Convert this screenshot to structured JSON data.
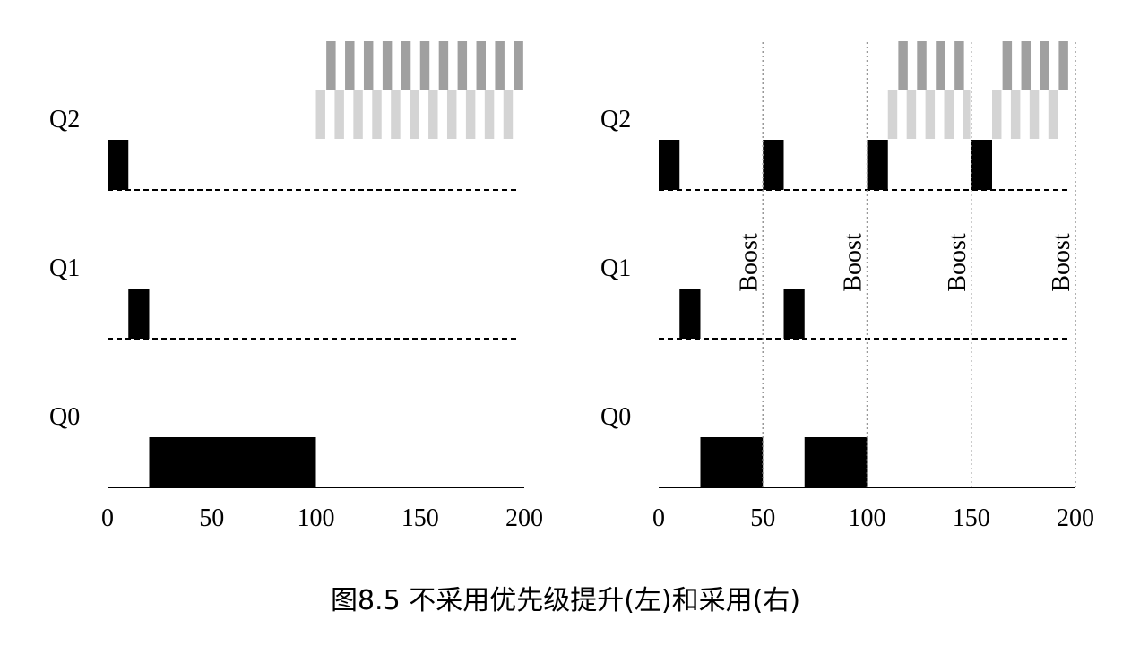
{
  "caption": "图8.5 不采用优先级提升(左)和采用(右)",
  "chart_data": [
    {
      "type": "timeline",
      "xlim": [
        0,
        200
      ],
      "xticks": [
        0,
        50,
        100,
        150,
        200
      ],
      "job_color": "#000000",
      "queues": [
        {
          "name": "Q2",
          "line": "dashed",
          "segments": [
            [
              0,
              10
            ]
          ],
          "stripes": [
            {
              "color": "#a0a0a0",
              "intervals": [
                [
                  105,
                  109.5
                ],
                [
                  114,
                  118.5
                ],
                [
                  123,
                  127.5
                ],
                [
                  132,
                  136.5
                ],
                [
                  141,
                  145.5
                ],
                [
                  150,
                  154.5
                ],
                [
                  159,
                  163.5
                ],
                [
                  168,
                  172.5
                ],
                [
                  177,
                  181.5
                ],
                [
                  186,
                  190.5
                ],
                [
                  195,
                  199.5
                ]
              ]
            },
            {
              "color": "#d4d4d4",
              "intervals": [
                [
                  100,
                  104.5
                ],
                [
                  109,
                  113.5
                ],
                [
                  118,
                  122.5
                ],
                [
                  127,
                  131.5
                ],
                [
                  136,
                  140.5
                ],
                [
                  145,
                  149.5
                ],
                [
                  154,
                  158.5
                ],
                [
                  163,
                  167.5
                ],
                [
                  172,
                  176.5
                ],
                [
                  181,
                  185.5
                ],
                [
                  190,
                  194.5
                ]
              ]
            }
          ]
        },
        {
          "name": "Q1",
          "line": "dashed",
          "segments": [
            [
              10,
              20
            ]
          ]
        },
        {
          "name": "Q0",
          "line": "solid",
          "segments": [
            [
              20,
              100
            ]
          ]
        }
      ]
    },
    {
      "type": "timeline",
      "xlim": [
        0,
        200
      ],
      "xticks": [
        0,
        50,
        100,
        150,
        200
      ],
      "job_color": "#000000",
      "boosts": [
        50,
        100,
        150,
        200
      ],
      "boost_label": "Boost",
      "queues": [
        {
          "name": "Q2",
          "line": "dashed",
          "segments": [
            [
              0,
              10
            ],
            [
              50,
              60
            ],
            [
              100,
              110
            ],
            [
              150,
              160
            ],
            [
              199.6,
              200
            ]
          ],
          "stripes": [
            {
              "color": "#a0a0a0",
              "intervals": [
                [
                  115,
                  119.5
                ],
                [
                  124,
                  128.5
                ],
                [
                  133,
                  137.5
                ],
                [
                  142,
                  146.5
                ],
                [
                  165,
                  169.5
                ],
                [
                  174,
                  178.5
                ],
                [
                  183,
                  187.5
                ],
                [
                  192,
                  196.5
                ]
              ]
            },
            {
              "color": "#d4d4d4",
              "intervals": [
                [
                  110,
                  114.5
                ],
                [
                  119,
                  123.5
                ],
                [
                  128,
                  132.5
                ],
                [
                  137,
                  141.5
                ],
                [
                  146,
                  149.5
                ],
                [
                  160,
                  164.5
                ],
                [
                  169,
                  173.5
                ],
                [
                  178,
                  182.5
                ],
                [
                  187,
                  191.5
                ]
              ]
            }
          ]
        },
        {
          "name": "Q1",
          "line": "dashed",
          "segments": [
            [
              10,
              20
            ],
            [
              60,
              70
            ]
          ]
        },
        {
          "name": "Q0",
          "line": "solid",
          "segments": [
            [
              20,
              50
            ],
            [
              70,
              100
            ]
          ]
        }
      ]
    }
  ]
}
